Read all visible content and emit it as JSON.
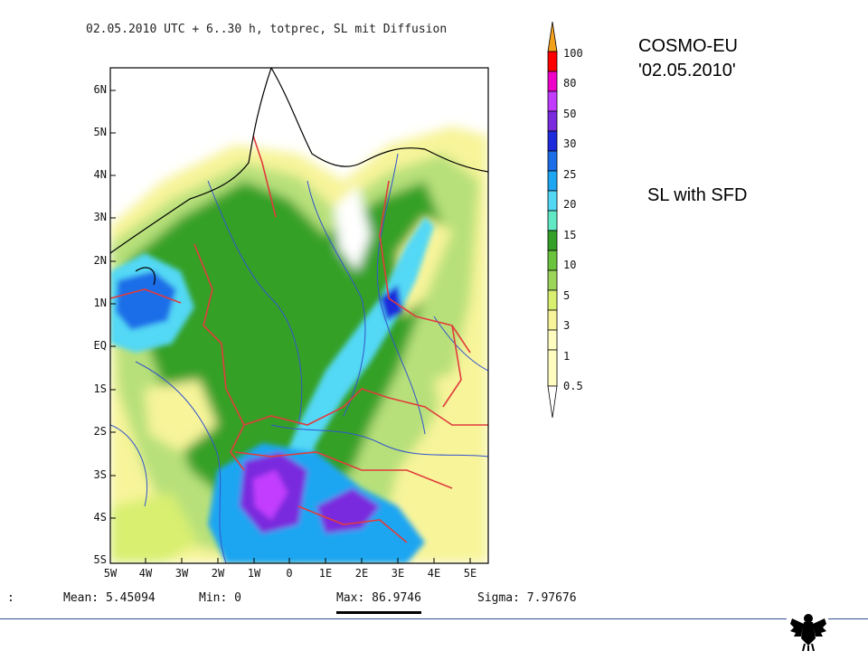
{
  "plot_title": "02.05.2010 UTC + 6..30 h, totprec, SL mit Diffusion",
  "side_title_line1": "COSMO-EU",
  "side_title_line2": "'02.05.2010'",
  "side_subtitle": "SL with SFD",
  "colorbar": {
    "labels": [
      "100",
      "80",
      "50",
      "30",
      "25",
      "20",
      "15",
      "10",
      "5",
      "3",
      "1",
      "0.5"
    ],
    "colors": [
      "#f4a11c",
      "#ff0000",
      "#ee00c8",
      "#c23cff",
      "#7a2bde",
      "#1f2cdc",
      "#1a6ee8",
      "#1fa6f2",
      "#52d8f5",
      "#61e8c4",
      "#35a028",
      "#6cc33c",
      "#9bd65a",
      "#d8ef70",
      "#f7f49a",
      "#fffec0",
      "#ffffff"
    ]
  },
  "y_ticks": [
    "6N",
    "5N",
    "4N",
    "3N",
    "2N",
    "1N",
    "EQ",
    "1S",
    "2S",
    "3S",
    "4S",
    "5S"
  ],
  "x_ticks": [
    "5W",
    "4W",
    "3W",
    "2W",
    "1W",
    "0",
    "1E",
    "2E",
    "3E",
    "4E",
    "5E"
  ],
  "stats": {
    "prefix": ":",
    "mean": "Mean: 5.45094",
    "min": "Min: 0",
    "max": "Max: 86.9746",
    "sigma": "Sigma: 7.97676"
  },
  "colors": {
    "frame": "#000000",
    "borders": "#e03c3c",
    "rivers": "#3355cc",
    "footer_line": "#2f4f8f"
  }
}
